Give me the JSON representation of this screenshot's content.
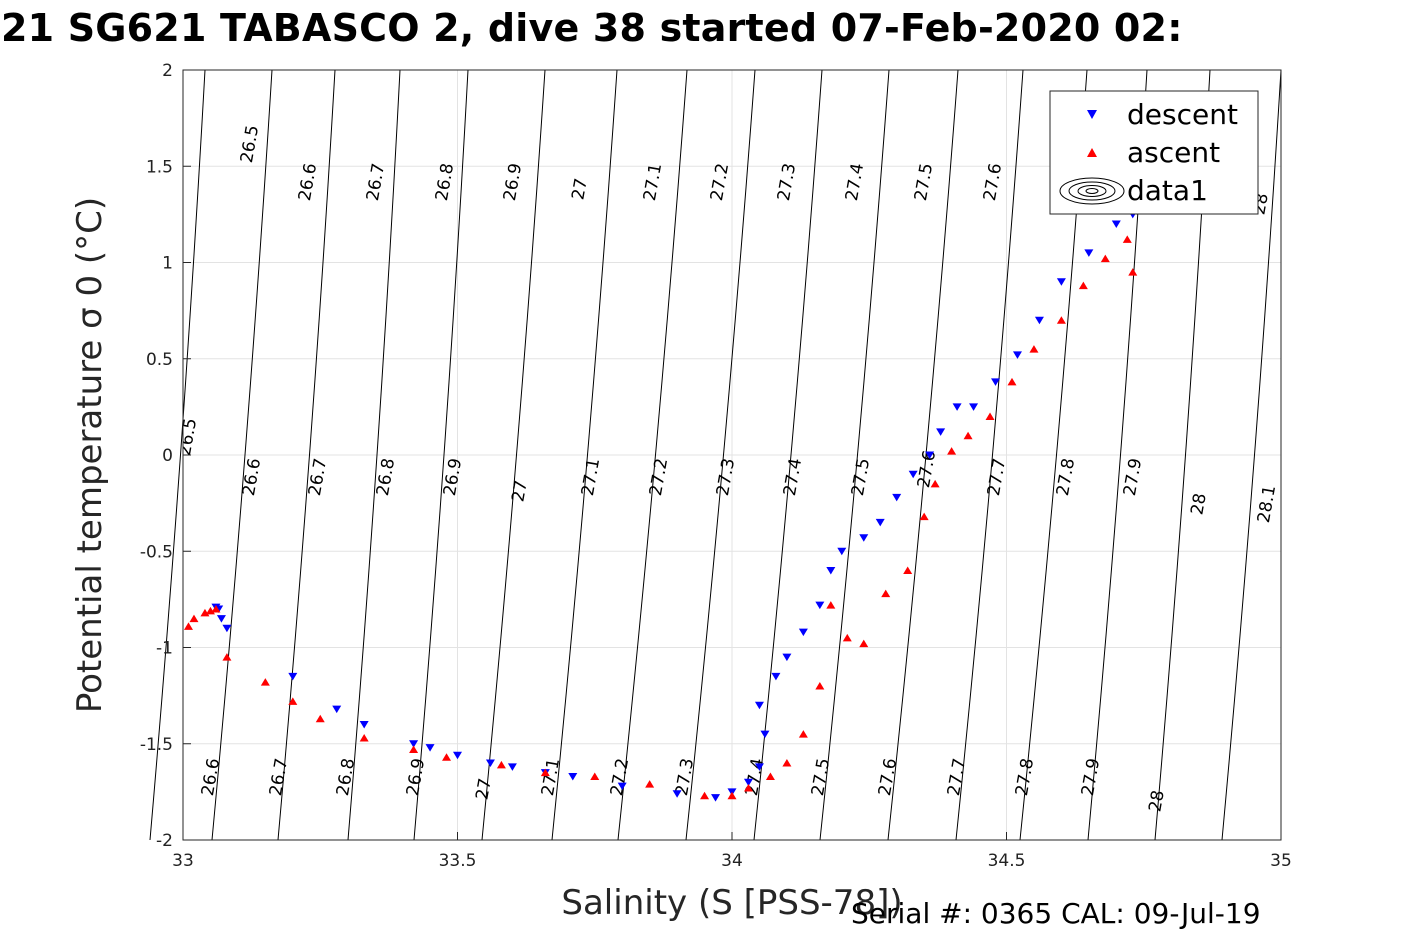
{
  "chart_data": {
    "type": "scatter",
    "title": "21 SG621 TABASCO 2, dive 38 started 07-Feb-2020 02:",
    "xlabel": "Salinity (S [PSS-78])",
    "ylabel": "Potential temperature σ 0 (°C)",
    "xlim": [
      33,
      35
    ],
    "ylim": [
      -2,
      2
    ],
    "xticks": [
      "33",
      "33.5",
      "34",
      "34.5",
      "35"
    ],
    "yticks": [
      "2",
      "1.5",
      "1",
      "0.5",
      "0",
      "-0.5",
      "-1",
      "-1.5",
      "-2"
    ],
    "grid": true,
    "legend_position": "top-right",
    "legend": [
      "descent",
      "ascent",
      "data1"
    ],
    "contour_labels_top": [
      "26.5",
      "26.6",
      "26.7",
      "26.8",
      "26.9",
      "27",
      "27.1",
      "27.2",
      "27.3",
      "27.4",
      "27.5",
      "27.6",
      "28"
    ],
    "contour_labels_middle": [
      "26.5",
      "26.6",
      "26.7",
      "26.8",
      "26.9",
      "27",
      "27.1",
      "27.2",
      "27.3",
      "27.4",
      "27.5",
      "27.6",
      "27.7",
      "27.8",
      "27.9",
      "28",
      "28.1"
    ],
    "contour_labels_bottom": [
      "26.6",
      "26.7",
      "26.8",
      "26.9",
      "27",
      "27.1",
      "27.2",
      "27.3",
      "27.4",
      "27.5",
      "27.6",
      "27.7",
      "27.8",
      "27.9",
      "28"
    ],
    "series": [
      {
        "name": "descent",
        "color": "#0000ff",
        "marker": "triangle-down",
        "x": [
          33.06,
          33.065,
          33.07,
          33.08,
          33.2,
          33.28,
          33.33,
          33.42,
          33.45,
          33.5,
          33.56,
          33.6,
          33.66,
          33.71,
          33.8,
          33.9,
          33.97,
          34.0,
          34.03,
          34.05,
          34.06,
          34.05,
          34.08,
          34.1,
          34.13,
          34.16,
          34.18,
          34.2,
          34.24,
          34.27,
          34.3,
          34.33,
          34.36,
          34.38,
          34.41,
          34.44,
          34.48,
          34.52,
          34.56,
          34.6,
          34.65,
          34.7,
          34.73
        ],
        "y": [
          -0.79,
          -0.8,
          -0.85,
          -0.9,
          -1.15,
          -1.32,
          -1.4,
          -1.5,
          -1.52,
          -1.56,
          -1.6,
          -1.62,
          -1.65,
          -1.67,
          -1.72,
          -1.76,
          -1.78,
          -1.75,
          -1.7,
          -1.62,
          -1.45,
          -1.3,
          -1.15,
          -1.05,
          -0.92,
          -0.78,
          -0.6,
          -0.5,
          -0.43,
          -0.35,
          -0.22,
          -0.1,
          0.0,
          0.12,
          0.25,
          0.25,
          0.38,
          0.52,
          0.7,
          0.9,
          1.05,
          1.2,
          1.25
        ]
      },
      {
        "name": "ascent",
        "color": "#ff0000",
        "marker": "triangle-up",
        "x": [
          33.01,
          33.02,
          33.04,
          33.05,
          33.06,
          33.08,
          33.15,
          33.2,
          33.25,
          33.33,
          33.42,
          33.48,
          33.58,
          33.66,
          33.75,
          33.85,
          33.95,
          34.0,
          34.03,
          34.07,
          34.1,
          34.13,
          34.16,
          34.18,
          34.21,
          34.24,
          34.28,
          34.32,
          34.35,
          34.37,
          34.4,
          34.43,
          34.47,
          34.51,
          34.55,
          34.6,
          34.64,
          34.68,
          34.72,
          34.73
        ],
        "y": [
          -0.89,
          -0.85,
          -0.82,
          -0.81,
          -0.8,
          -1.05,
          -1.18,
          -1.28,
          -1.37,
          -1.47,
          -1.53,
          -1.57,
          -1.61,
          -1.65,
          -1.67,
          -1.71,
          -1.77,
          -1.77,
          -1.73,
          -1.67,
          -1.6,
          -1.45,
          -1.2,
          -0.78,
          -0.95,
          -0.98,
          -0.72,
          -0.6,
          -0.32,
          -0.15,
          0.02,
          0.1,
          0.2,
          0.38,
          0.55,
          0.7,
          0.88,
          1.02,
          1.12,
          0.95
        ]
      }
    ]
  },
  "footer": {
    "text": "Serial #: 0365  CAL: 09-Jul-19"
  }
}
